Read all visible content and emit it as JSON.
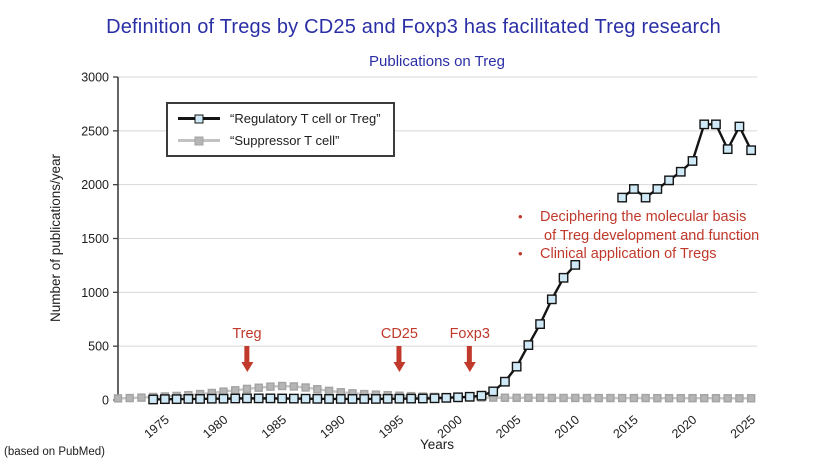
{
  "slide": {
    "title": "Definition of Tregs by CD25 and Foxp3 has facilitated Treg research",
    "source_note": "(based on PubMed)",
    "title_color": "#2b2fa6",
    "annotation_color": "#c0392b"
  },
  "chart_data": {
    "type": "line",
    "title": "Publications on Treg",
    "xlabel": "Years",
    "ylabel": "Number of publications/year",
    "ylim": [
      0,
      3000
    ],
    "ytick_interval": 500,
    "xlim": [
      1971,
      2025.5
    ],
    "xticks": [
      1975,
      1980,
      1985,
      1990,
      1995,
      2000,
      2005,
      2010,
      2015,
      2020,
      2025
    ],
    "grid": "horizontal",
    "legend_position": "top-left",
    "x": [
      1971,
      1972,
      1973,
      1974,
      1975,
      1976,
      1977,
      1978,
      1979,
      1980,
      1981,
      1982,
      1983,
      1984,
      1985,
      1986,
      1987,
      1988,
      1989,
      1990,
      1991,
      1992,
      1993,
      1994,
      1995,
      1996,
      1997,
      1998,
      1999,
      2000,
      2001,
      2002,
      2003,
      2004,
      2005,
      2006,
      2007,
      2008,
      2009,
      2010,
      2011,
      2012,
      2013,
      2014,
      2015,
      2016,
      2017,
      2018,
      2019,
      2020,
      2021,
      2022,
      2023,
      2024,
      2025
    ],
    "series": [
      {
        "name": "“Regulatory T cell or Treg”",
        "color": "#141414",
        "marker_fill": "#cfe9f6",
        "marker_stroke": "#141414",
        "marker_size": 8.4,
        "values": [
          null,
          null,
          null,
          5,
          8,
          8,
          10,
          10,
          12,
          12,
          14,
          15,
          15,
          15,
          14,
          13,
          12,
          11,
          10,
          10,
          10,
          10,
          10,
          11,
          12,
          13,
          14,
          16,
          20,
          25,
          30,
          40,
          80,
          170,
          310,
          510,
          705,
          935,
          1135,
          1255,
          null,
          null,
          null,
          1880,
          1960,
          1880,
          1960,
          2040,
          2120,
          2220,
          2560,
          2560,
          2330,
          2540,
          2320
        ]
      },
      {
        "name": "“Suppressor T cell”",
        "color": "#c6c6c6",
        "marker_fill": "#b5b5b5",
        "marker_stroke": "#a3a3a3",
        "marker_size": 7,
        "values": [
          15,
          18,
          22,
          28,
          33,
          38,
          45,
          55,
          65,
          78,
          90,
          103,
          114,
          124,
          130,
          126,
          116,
          100,
          85,
          72,
          62,
          55,
          50,
          45,
          40,
          36,
          32,
          29,
          27,
          25,
          24,
          23,
          22,
          21,
          20,
          20,
          20,
          19,
          19,
          19,
          18,
          18,
          18,
          18,
          18,
          18,
          17,
          17,
          17,
          17,
          17,
          17,
          16,
          16,
          16
        ]
      }
    ],
    "annotations": {
      "color": "#c0392b",
      "bullet_char": "•",
      "arrows": [
        {
          "label": "Treg",
          "year": 1982
        },
        {
          "label": "CD25",
          "year": 1995
        },
        {
          "label": "Foxp3",
          "year": 2001
        }
      ],
      "bullets": [
        [
          "Deciphering the molecular basis",
          "of Treg development and function"
        ],
        [
          "Clinical application of Tregs"
        ]
      ]
    }
  }
}
